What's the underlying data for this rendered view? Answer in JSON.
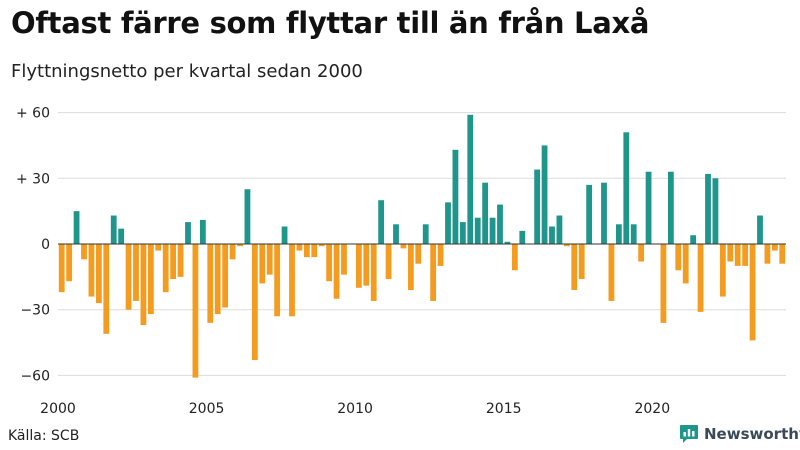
{
  "header": {
    "title": "Oftast färre som flyttar till än från Laxå",
    "subtitle": "Flyttningsnetto per kvartal sedan 2000"
  },
  "footer": {
    "source": "Källa: SCB",
    "brand": "Newsworthy"
  },
  "colors": {
    "positive": "#1f968b",
    "negative": "#f39c1f",
    "grid": "#dcdcdc",
    "zero_line": "#333333",
    "brand_icon": "#1f968b"
  },
  "icons": {
    "brand": "newsworthy-logo-icon"
  },
  "chart_data": {
    "type": "bar",
    "title": "Oftast färre som flyttar till än från Laxå",
    "subtitle": "Flyttningsnetto per kvartal sedan 2000",
    "xlabel": "",
    "ylabel": "",
    "ylim": [
      -66,
      64
    ],
    "yticks": [
      60,
      30,
      0,
      -30,
      -60
    ],
    "ytick_labels": [
      "+ 60",
      "+ 30",
      "0",
      "−30",
      "−60"
    ],
    "xticks": [
      2000,
      2005,
      2010,
      2015,
      2020
    ],
    "xtick_labels": [
      "2000",
      "2005",
      "2010",
      "2015",
      "2020"
    ],
    "grid": true,
    "start_period": "2000 K1",
    "values": [
      -22,
      -17,
      15,
      -7,
      -24,
      -27,
      -41,
      13,
      7,
      -30,
      -26,
      -37,
      -32,
      -3,
      -22,
      -16,
      -15,
      10,
      -61,
      11,
      -36,
      -32,
      -29,
      -7,
      -1,
      25,
      -53,
      -18,
      -14,
      -33,
      8,
      -33,
      -3,
      -6,
      -6,
      -1,
      -17,
      -25,
      -14,
      0,
      -20,
      -19,
      -26,
      20,
      -16,
      9,
      -2,
      -21,
      -9,
      9,
      -26,
      -10,
      19,
      43,
      10,
      59,
      12,
      28,
      12,
      18,
      1,
      -12,
      6,
      0,
      34,
      45,
      8,
      13,
      -1,
      -21,
      -16,
      27,
      0,
      28,
      -26,
      9,
      51,
      9,
      -8,
      33,
      0,
      -36,
      33,
      -12,
      -18,
      4,
      -31,
      32,
      30,
      -24,
      -8,
      -10,
      -10,
      -44,
      13,
      -9,
      -3,
      -9
    ]
  }
}
